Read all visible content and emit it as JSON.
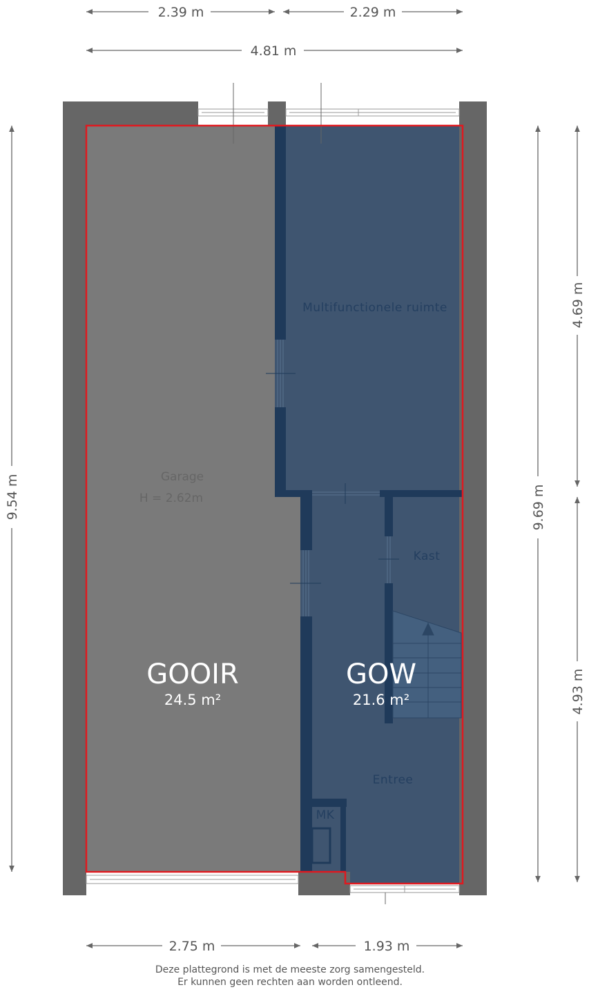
{
  "dimensions": {
    "top_left": "2.39 m",
    "top_right": "2.29 m",
    "top_total": "4.81 m",
    "left_total": "9.54 m",
    "right_total": "9.69 m",
    "right_upper": "4.69 m",
    "right_lower": "4.93 m",
    "bottom_left": "2.75 m",
    "bottom_right": "1.93 m"
  },
  "rooms": {
    "garage": "Garage",
    "garage_height": "H = 2.62m",
    "multifunctional": "Multifunctionele ruimte",
    "kast": "Kast",
    "entree": "Entree",
    "mk": "MK"
  },
  "zones": [
    {
      "label": "GOOIR",
      "area": "24.5 m²",
      "color": "#7a7a7a"
    },
    {
      "label": "GOW",
      "area": "21.6 m²",
      "color": "#3f5570"
    }
  ],
  "colors": {
    "outline": "#e0191f",
    "outer_wall": "#666666",
    "inner_wall": "#1f3a5a"
  },
  "footer": {
    "line1": "Deze plattegrond is met de meeste zorg samengesteld.",
    "line2": "Er kunnen geen rechten aan worden ontleend."
  }
}
